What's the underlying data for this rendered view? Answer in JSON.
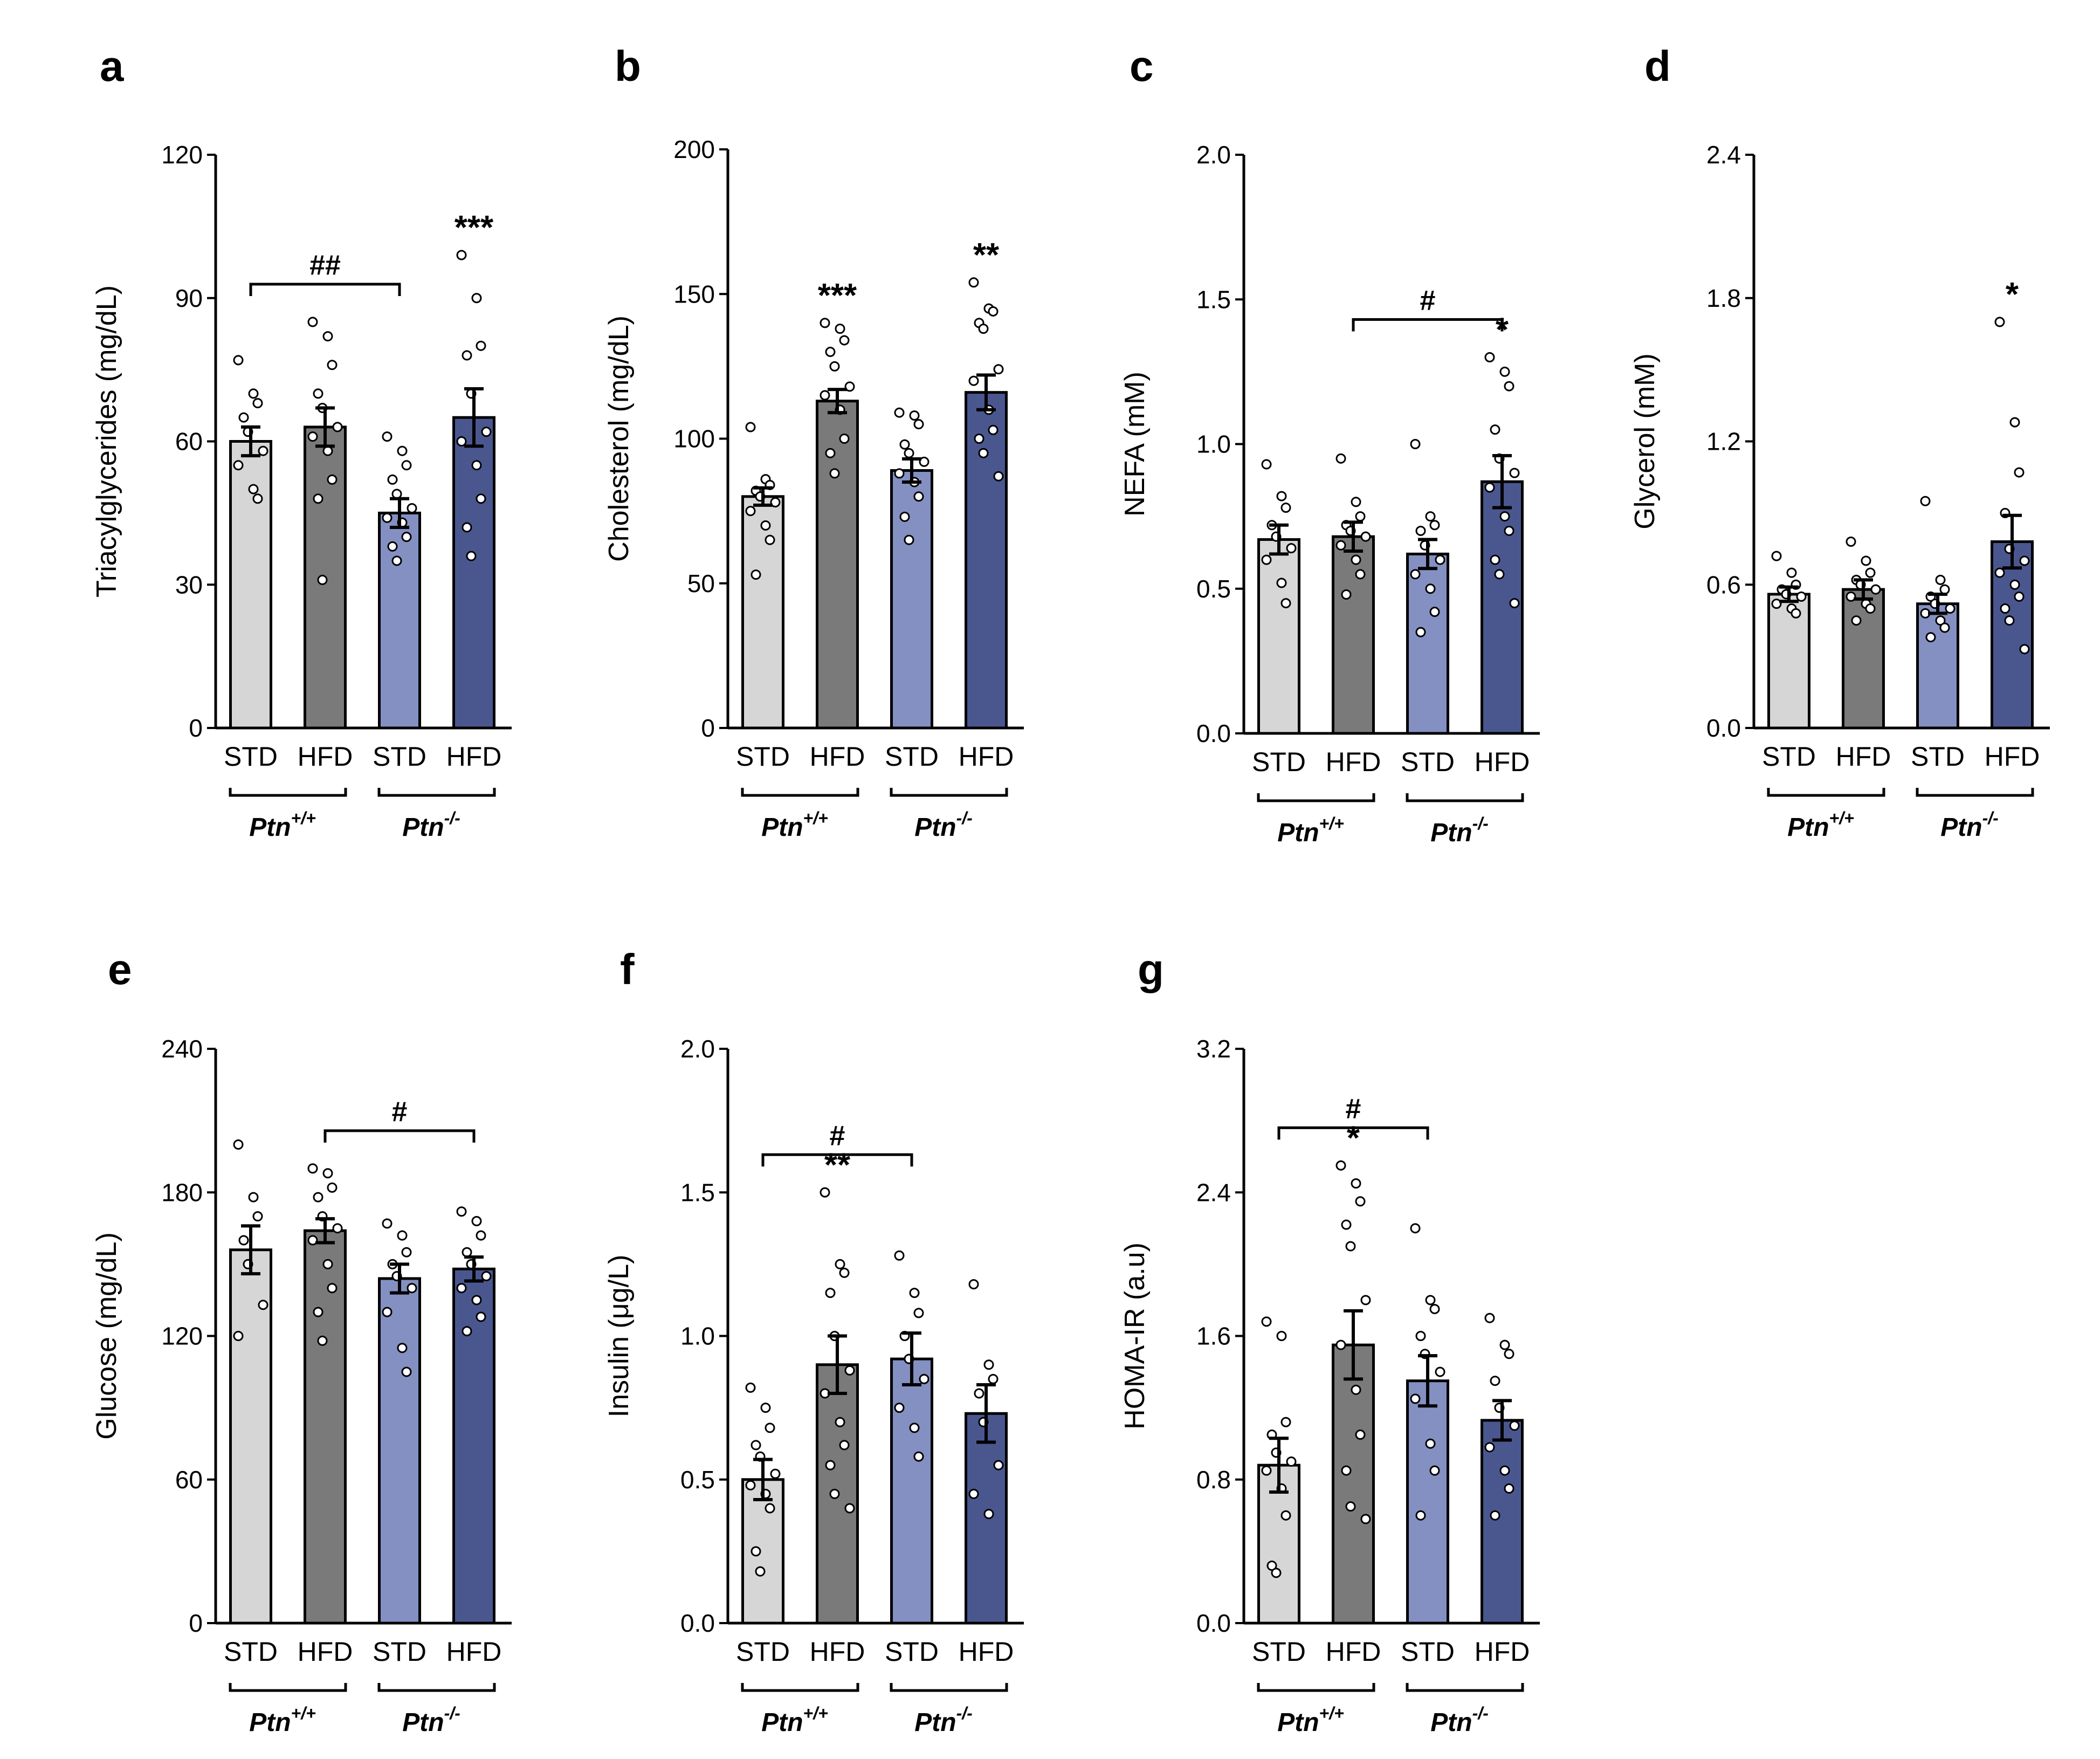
{
  "colors": {
    "STD_wt": "#d6d6d6",
    "HFD_wt": "#7a7a7a",
    "STD_ko": "#8490c2",
    "HFD_ko": "#4a578f"
  },
  "chart_data": [
    {
      "panel": "a",
      "type": "bar",
      "ylabel": "Triacylglycerides (mg/dL)",
      "ylim": [
        0,
        120
      ],
      "yticks": [
        "0",
        "30",
        "60",
        "90",
        "120"
      ],
      "categories": [
        "STD",
        "HFD",
        "STD",
        "HFD"
      ],
      "groups": [
        "Ptn",
        "Ptn"
      ],
      "group_sup": [
        "+/+",
        "-/-"
      ],
      "values": [
        60,
        63,
        45,
        65
      ],
      "errors": [
        3,
        4,
        3,
        6
      ],
      "points": [
        [
          77,
          70,
          68,
          65,
          62,
          58,
          55,
          50,
          48
        ],
        [
          85,
          82,
          76,
          70,
          67,
          63,
          61,
          58,
          52,
          48,
          31
        ],
        [
          61,
          58,
          55,
          52,
          49,
          46,
          44,
          43,
          40,
          38,
          35
        ],
        [
          99,
          90,
          80,
          78,
          70,
          62,
          60,
          55,
          48,
          42,
          36
        ]
      ],
      "stars": [
        "",
        "",
        "",
        "***"
      ],
      "bracket": {
        "from": 0,
        "to": 2,
        "label": "##"
      }
    },
    {
      "panel": "b",
      "type": "bar",
      "ylabel": "Cholesterol (mg/dL)",
      "ylim": [
        0,
        200
      ],
      "yticks": [
        "0",
        "50",
        "100",
        "150",
        "200"
      ],
      "categories": [
        "STD",
        "HFD",
        "STD",
        "HFD"
      ],
      "groups": [
        "Ptn",
        "Ptn"
      ],
      "group_sup": [
        "+/+",
        "-/-"
      ],
      "values": [
        80,
        113,
        89,
        116
      ],
      "errors": [
        3,
        4,
        4,
        6
      ],
      "points": [
        [
          104,
          86,
          84,
          82,
          80,
          78,
          75,
          70,
          65,
          53
        ],
        [
          140,
          138,
          134,
          130,
          125,
          118,
          115,
          110,
          100,
          95,
          88
        ],
        [
          109,
          108,
          105,
          98,
          95,
          92,
          88,
          85,
          80,
          73,
          65
        ],
        [
          154,
          145,
          144,
          140,
          138,
          124,
          120,
          110,
          103,
          100,
          95,
          87
        ]
      ],
      "stars": [
        "",
        "***",
        "",
        "**"
      ],
      "bracket": null
    },
    {
      "panel": "c",
      "type": "bar",
      "ylabel": "NEFA (mM)",
      "ylim": [
        0,
        2.0
      ],
      "yticks": [
        "0.0",
        "0.5",
        "1.0",
        "1.5",
        "2.0"
      ],
      "categories": [
        "STD",
        "HFD",
        "STD",
        "HFD"
      ],
      "groups": [
        "Ptn",
        "Ptn"
      ],
      "group_sup": [
        "+/+",
        "-/-"
      ],
      "values": [
        0.67,
        0.68,
        0.62,
        0.87
      ],
      "errors": [
        0.05,
        0.05,
        0.05,
        0.09
      ],
      "points": [
        [
          0.93,
          0.82,
          0.78,
          0.72,
          0.68,
          0.64,
          0.6,
          0.52,
          0.45
        ],
        [
          0.95,
          0.8,
          0.75,
          0.72,
          0.7,
          0.68,
          0.65,
          0.6,
          0.55,
          0.48
        ],
        [
          1.0,
          0.75,
          0.72,
          0.7,
          0.65,
          0.6,
          0.55,
          0.5,
          0.42,
          0.35
        ],
        [
          1.3,
          1.25,
          1.2,
          1.05,
          0.95,
          0.9,
          0.85,
          0.75,
          0.7,
          0.6,
          0.55,
          0.45
        ]
      ],
      "stars": [
        "",
        "",
        "",
        "*"
      ],
      "bracket": {
        "from": 1,
        "to": 3,
        "label": "#"
      }
    },
    {
      "panel": "d",
      "type": "bar",
      "ylabel": "Glycerol (mM)",
      "ylim": [
        0,
        2.4
      ],
      "yticks": [
        "0.0",
        "0.6",
        "1.2",
        "1.8",
        "2.4"
      ],
      "categories": [
        "STD",
        "HFD",
        "STD",
        "HFD"
      ],
      "groups": [
        "Ptn",
        "Ptn"
      ],
      "group_sup": [
        "+/+",
        "-/-"
      ],
      "values": [
        0.56,
        0.58,
        0.52,
        0.78
      ],
      "errors": [
        0.03,
        0.04,
        0.04,
        0.11
      ],
      "points": [
        [
          0.72,
          0.65,
          0.6,
          0.58,
          0.56,
          0.55,
          0.52,
          0.5,
          0.48
        ],
        [
          0.78,
          0.7,
          0.65,
          0.62,
          0.6,
          0.58,
          0.55,
          0.52,
          0.5,
          0.45
        ],
        [
          0.95,
          0.62,
          0.58,
          0.55,
          0.52,
          0.5,
          0.48,
          0.45,
          0.42,
          0.38
        ],
        [
          1.7,
          1.28,
          1.07,
          0.9,
          0.75,
          0.7,
          0.65,
          0.6,
          0.55,
          0.5,
          0.45,
          0.33
        ]
      ],
      "stars": [
        "",
        "",
        "",
        "*"
      ],
      "bracket": null
    },
    {
      "panel": "e",
      "type": "bar",
      "ylabel": "Glucose (mg/dL)",
      "ylim": [
        0,
        240
      ],
      "yticks": [
        "0",
        "60",
        "120",
        "180",
        "240"
      ],
      "categories": [
        "STD",
        "HFD",
        "STD",
        "HFD"
      ],
      "groups": [
        "Ptn",
        "Ptn"
      ],
      "group_sup": [
        "+/+",
        "-/-"
      ],
      "values": [
        156,
        164,
        144,
        148
      ],
      "errors": [
        10,
        5,
        6,
        5
      ],
      "points": [
        [
          200,
          178,
          170,
          160,
          150,
          133,
          120
        ],
        [
          190,
          188,
          182,
          178,
          170,
          165,
          160,
          150,
          140,
          130,
          118
        ],
        [
          167,
          162,
          155,
          150,
          145,
          140,
          130,
          115,
          105
        ],
        [
          172,
          168,
          162,
          155,
          150,
          145,
          140,
          135,
          128,
          122
        ]
      ],
      "stars": [
        "",
        "",
        "",
        ""
      ],
      "bracket": {
        "from": 1,
        "to": 3,
        "label": "#"
      }
    },
    {
      "panel": "f",
      "type": "bar",
      "ylabel": "Insulin (μg/L)",
      "ylim": [
        0,
        2.0
      ],
      "yticks": [
        "0.0",
        "0.5",
        "1.0",
        "1.5",
        "2.0"
      ],
      "categories": [
        "STD",
        "HFD",
        "STD",
        "HFD"
      ],
      "groups": [
        "Ptn",
        "Ptn"
      ],
      "group_sup": [
        "+/+",
        "-/-"
      ],
      "values": [
        0.5,
        0.9,
        0.92,
        0.73
      ],
      "errors": [
        0.07,
        0.1,
        0.09,
        0.1
      ],
      "points": [
        [
          0.82,
          0.75,
          0.68,
          0.62,
          0.58,
          0.52,
          0.48,
          0.45,
          0.4,
          0.25,
          0.18
        ],
        [
          1.5,
          1.25,
          1.22,
          1.15,
          1.0,
          0.88,
          0.8,
          0.7,
          0.62,
          0.55,
          0.45,
          0.4
        ],
        [
          1.28,
          1.15,
          1.08,
          1.0,
          0.92,
          0.85,
          0.75,
          0.68,
          0.58
        ],
        [
          1.18,
          0.9,
          0.85,
          0.8,
          0.7,
          0.55,
          0.45,
          0.38
        ]
      ],
      "stars": [
        "",
        "**",
        "",
        ""
      ],
      "bracket": {
        "from": 0,
        "to": 2,
        "label": "#"
      }
    },
    {
      "panel": "g",
      "type": "bar",
      "ylabel": "HOMA-IR (a.u)",
      "ylim": [
        0,
        3.2
      ],
      "yticks": [
        "0.0",
        "0.8",
        "1.6",
        "2.4",
        "3.2"
      ],
      "categories": [
        "STD",
        "HFD",
        "STD",
        "HFD"
      ],
      "groups": [
        "Ptn",
        "Ptn"
      ],
      "group_sup": [
        "+/+",
        "-/-"
      ],
      "values": [
        0.88,
        1.55,
        1.35,
        1.13
      ],
      "errors": [
        0.15,
        0.19,
        0.14,
        0.11
      ],
      "points": [
        [
          1.68,
          1.6,
          1.12,
          1.05,
          0.95,
          0.9,
          0.85,
          0.75,
          0.6,
          0.32,
          0.28
        ],
        [
          2.55,
          2.45,
          2.35,
          2.22,
          2.1,
          1.8,
          1.55,
          1.3,
          1.05,
          0.85,
          0.65,
          0.58
        ],
        [
          2.2,
          1.8,
          1.75,
          1.6,
          1.5,
          1.4,
          1.25,
          1.0,
          0.85,
          0.6
        ],
        [
          1.7,
          1.55,
          1.5,
          1.35,
          1.2,
          1.1,
          0.98,
          0.85,
          0.75,
          0.6
        ]
      ],
      "stars": [
        "",
        "*",
        "",
        ""
      ],
      "bracket": {
        "from": 0,
        "to": 2,
        "label": "#"
      }
    }
  ]
}
